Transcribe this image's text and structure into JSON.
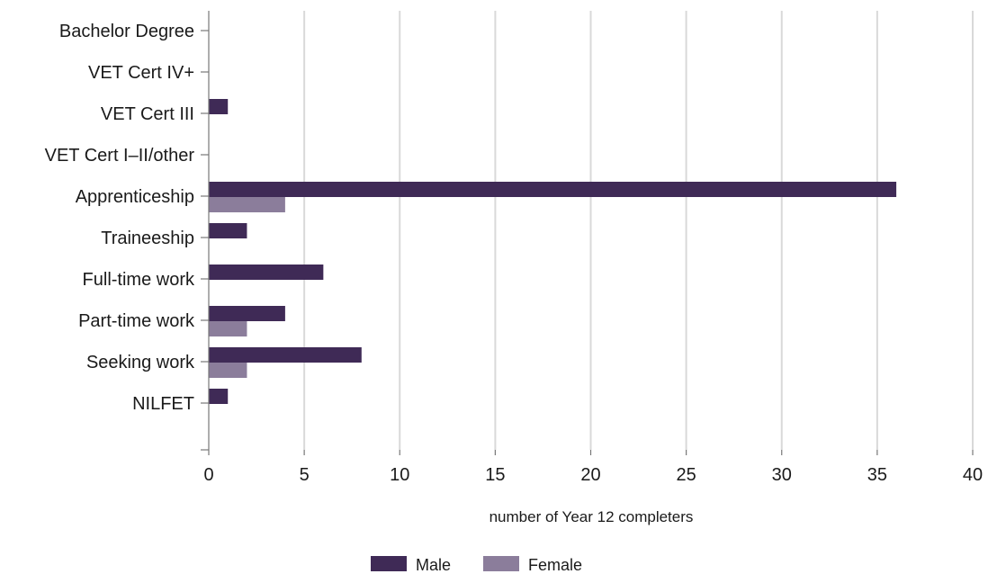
{
  "chart_data": {
    "type": "bar",
    "orientation": "horizontal",
    "categories": [
      "Bachelor Degree",
      "VET Cert IV+",
      "VET Cert III",
      "VET Cert I–II/other",
      "Apprenticeship",
      "Traineeship",
      "Full-time work",
      "Part-time work",
      "Seeking work",
      "NILFET"
    ],
    "series": [
      {
        "name": "Male",
        "color": "#3f2a56",
        "values": [
          0,
          0,
          1,
          0,
          36,
          2,
          6,
          4,
          8,
          1
        ]
      },
      {
        "name": "Female",
        "color": "#8b7d9b",
        "values": [
          0,
          0,
          0,
          0,
          4,
          0,
          0,
          2,
          2,
          0
        ]
      }
    ],
    "title": "",
    "xlabel": "number of Year 12 completers",
    "ylabel": "",
    "xlim": [
      0,
      40
    ],
    "xticks": [
      0,
      5,
      10,
      15,
      20,
      25,
      30,
      35,
      40
    ],
    "xtick_labels": [
      "0",
      "5",
      "10",
      "15",
      "20",
      "25",
      "30",
      "35",
      "40"
    ],
    "grid": "vertical",
    "grid_color": "#d9d9d9",
    "legend": {
      "position": "bottom-center",
      "entries": [
        "Male",
        "Female"
      ]
    }
  }
}
